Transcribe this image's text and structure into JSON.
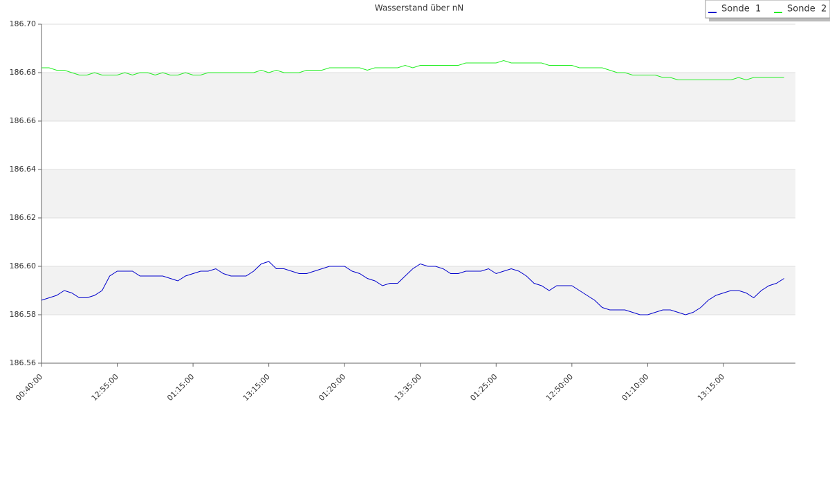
{
  "chart_data": {
    "type": "line",
    "title": "Wasserstand über nN",
    "categories": [
      "00:40:00",
      null,
      null,
      null,
      null,
      null,
      null,
      null,
      null,
      null,
      "12:55:00",
      null,
      null,
      null,
      null,
      null,
      null,
      null,
      null,
      null,
      "01:15:00",
      null,
      null,
      null,
      null,
      null,
      null,
      null,
      null,
      null,
      "13:15:00",
      null,
      null,
      null,
      null,
      null,
      null,
      null,
      null,
      null,
      "01:20:00",
      null,
      null,
      null,
      null,
      null,
      null,
      null,
      null,
      null,
      "13:35:00",
      null,
      null,
      null,
      null,
      null,
      null,
      null,
      null,
      null,
      "01:25:00",
      null,
      null,
      null,
      null,
      null,
      null,
      null,
      null,
      null,
      "12:50:00",
      null,
      null,
      null,
      null,
      null,
      null,
      null,
      null,
      null,
      "01:10:00",
      null,
      null,
      null,
      null,
      null,
      null,
      null,
      null,
      null,
      "13:15:00",
      null,
      null,
      null,
      null,
      null,
      null,
      null,
      null
    ],
    "series": [
      {
        "name": "Sonde  1",
        "color": "#0000cc",
        "values": [
          186.586,
          186.587,
          186.588,
          186.59,
          186.589,
          186.587,
          186.587,
          186.588,
          186.59,
          186.596,
          186.598,
          186.598,
          186.598,
          186.596,
          186.596,
          186.596,
          186.596,
          186.595,
          186.594,
          186.596,
          186.597,
          186.598,
          186.598,
          186.599,
          186.597,
          186.596,
          186.596,
          186.596,
          186.598,
          186.601,
          186.602,
          186.599,
          186.599,
          186.598,
          186.597,
          186.597,
          186.598,
          186.599,
          186.6,
          186.6,
          186.6,
          186.598,
          186.597,
          186.595,
          186.594,
          186.592,
          186.593,
          186.593,
          186.596,
          186.599,
          186.601,
          186.6,
          186.6,
          186.599,
          186.597,
          186.597,
          186.598,
          186.598,
          186.598,
          186.599,
          186.597,
          186.598,
          186.599,
          186.598,
          186.596,
          186.593,
          186.592,
          186.59,
          186.592,
          186.592,
          186.592,
          186.59,
          186.588,
          186.586,
          186.583,
          186.582,
          186.582,
          186.582,
          186.581,
          186.58,
          186.58,
          186.581,
          186.582,
          186.582,
          186.581,
          186.58,
          186.581,
          186.583,
          186.586,
          186.588,
          186.589,
          186.59,
          186.59,
          186.589,
          186.587,
          186.59,
          186.592,
          186.593,
          186.595
        ]
      },
      {
        "name": "Sonde  2",
        "color": "#22ee22",
        "values": [
          186.682,
          186.682,
          186.681,
          186.681,
          186.68,
          186.679,
          186.679,
          186.68,
          186.679,
          186.679,
          186.679,
          186.68,
          186.679,
          186.68,
          186.68,
          186.679,
          186.68,
          186.679,
          186.679,
          186.68,
          186.679,
          186.679,
          186.68,
          186.68,
          186.68,
          186.68,
          186.68,
          186.68,
          186.68,
          186.681,
          186.68,
          186.681,
          186.68,
          186.68,
          186.68,
          186.681,
          186.681,
          186.681,
          186.682,
          186.682,
          186.682,
          186.682,
          186.682,
          186.681,
          186.682,
          186.682,
          186.682,
          186.682,
          186.683,
          186.682,
          186.683,
          186.683,
          186.683,
          186.683,
          186.683,
          186.683,
          186.684,
          186.684,
          186.684,
          186.684,
          186.684,
          186.685,
          186.684,
          186.684,
          186.684,
          186.684,
          186.684,
          186.683,
          186.683,
          186.683,
          186.683,
          186.682,
          186.682,
          186.682,
          186.682,
          186.681,
          186.68,
          186.68,
          186.679,
          186.679,
          186.679,
          186.679,
          186.678,
          186.678,
          186.677,
          186.677,
          186.677,
          186.677,
          186.677,
          186.677,
          186.677,
          186.677,
          186.678,
          186.677,
          186.678,
          186.678,
          186.678,
          186.678,
          186.678
        ]
      }
    ],
    "ylim": [
      186.56,
      186.7
    ],
    "yticks": [
      186.56,
      186.58,
      {
        "value": 186.6,
        "label": "186.60"
      },
      186.62,
      186.64,
      186.66,
      186.68,
      {
        "value": 186.7,
        "label": "186.70"
      }
    ],
    "grid": true
  }
}
